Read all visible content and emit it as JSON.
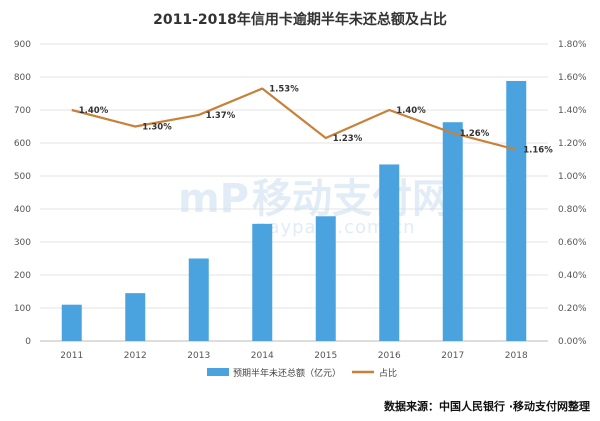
{
  "chart_data": {
    "type": "bar",
    "title": "2011-2018年信用卡逾期半年未还总额及占比",
    "categories": [
      "2011",
      "2012",
      "2013",
      "2014",
      "2015",
      "2016",
      "2017",
      "2018"
    ],
    "series": [
      {
        "name": "预期半年未还总额（亿元）",
        "type": "bar",
        "axis": "left",
        "color": "#4aa3df",
        "values": [
          110,
          145,
          250,
          355,
          378,
          535,
          663,
          788
        ]
      },
      {
        "name": "占比",
        "type": "line",
        "axis": "right",
        "color": "#c8813a",
        "values": [
          1.4,
          1.3,
          1.37,
          1.53,
          1.23,
          1.4,
          1.26,
          1.16
        ],
        "labels": [
          "1.40%",
          "1.30%",
          "1.37%",
          "1.53%",
          "1.23%",
          "1.40%",
          "1.26%",
          "1.16%"
        ]
      }
    ],
    "y_left": {
      "min": 0,
      "max": 900,
      "ticks": [
        "0",
        "100",
        "200",
        "300",
        "400",
        "500",
        "600",
        "700",
        "800",
        "900"
      ]
    },
    "y_right": {
      "min": 0,
      "max": 1.8,
      "ticks": [
        "0.00%",
        "0.20%",
        "0.40%",
        "0.60%",
        "0.80%",
        "1.00%",
        "1.20%",
        "1.40%",
        "1.60%",
        "1.80%"
      ]
    },
    "grid": true,
    "legend": "bottom-center"
  },
  "watermark": {
    "text_cn": "移动支付网",
    "text_en": "paypass.com.cn",
    "logo_text": "mP"
  },
  "source": "数据来源：中国人民银行 ·移动支付网整理"
}
